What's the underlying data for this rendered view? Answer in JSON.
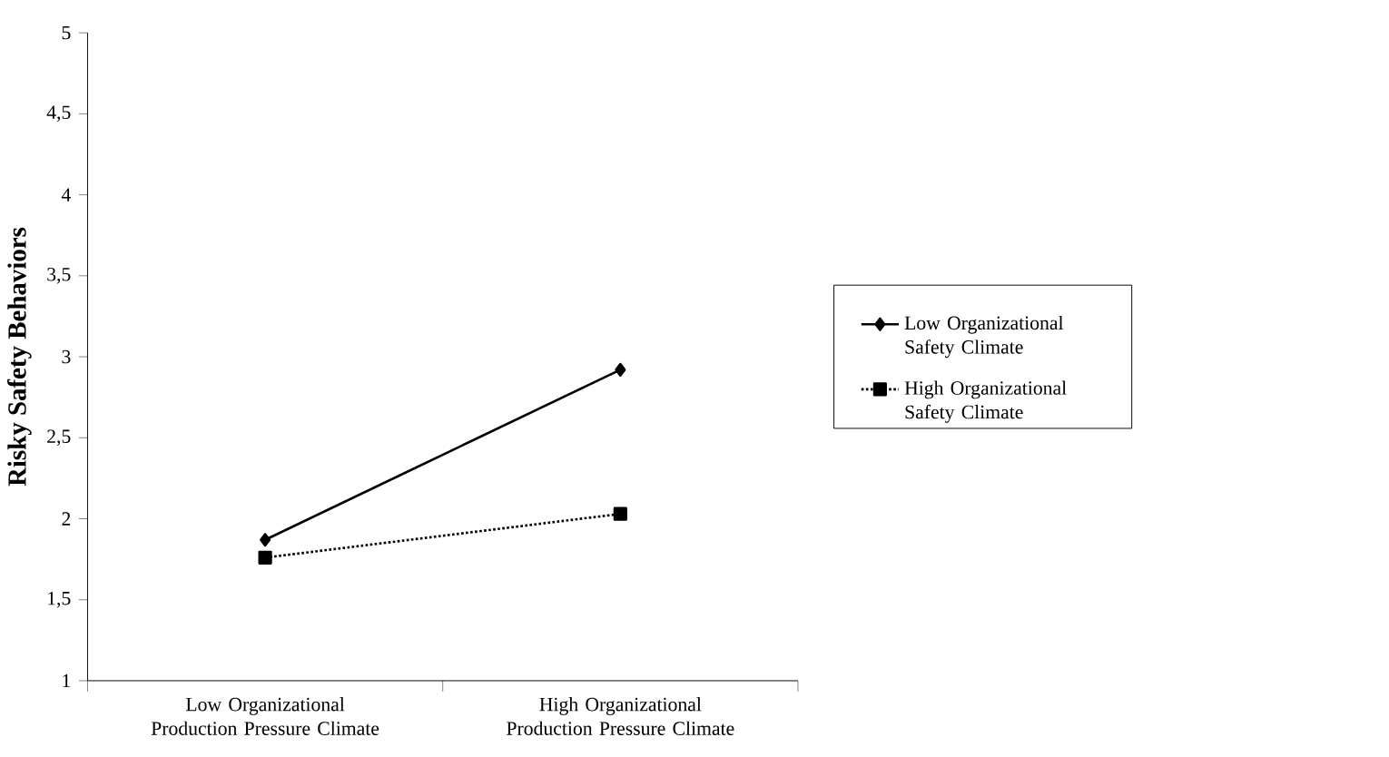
{
  "chart_data": {
    "type": "line",
    "ylabel": "Risky Safety Behaviors",
    "categories": [
      "Low Organizational  Production Pressure Climate",
      "High Organizational  Production Pressure Climate"
    ],
    "series": [
      {
        "name": "Low Organizational Safety Climate",
        "color": "#000000",
        "values": [
          1.87,
          2.92
        ],
        "marker": "diamond",
        "line_style": "solid"
      },
      {
        "name": "High Organizational Safety Climate",
        "color": "#000000",
        "values": [
          1.76,
          2.03
        ],
        "marker": "square",
        "line_style": "dotted"
      }
    ],
    "ylim": [
      1,
      5
    ],
    "yticks": [
      1,
      {
        "value": 1.5,
        "label": "1,5"
      },
      2,
      {
        "value": 2.5,
        "label": "2,5"
      },
      3,
      {
        "value": 3.5,
        "label": "3,5"
      },
      4,
      {
        "value": 4.5,
        "label": "4,5"
      },
      5
    ],
    "legend": "right"
  }
}
